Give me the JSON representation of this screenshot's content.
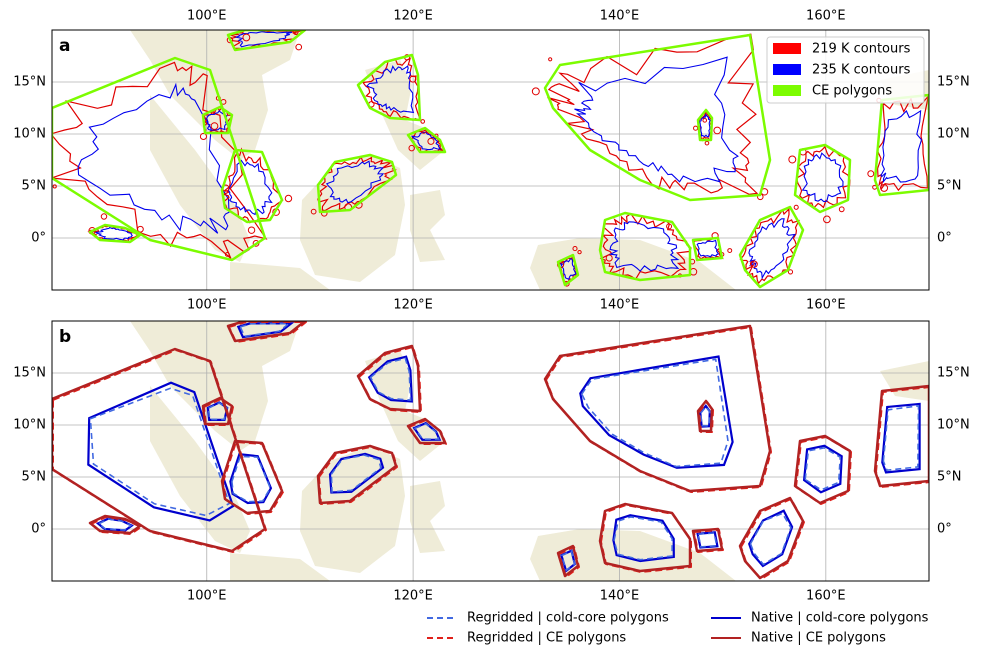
{
  "panels": [
    {
      "label": "a",
      "legend": [
        {
          "name": "219 K contours",
          "color": "#ff0000"
        },
        {
          "name": "235 K contours",
          "color": "#0000ff"
        },
        {
          "name": "CE polygons",
          "color": "#7cfc00"
        }
      ]
    },
    {
      "label": "b"
    }
  ],
  "map": {
    "xlim": [
      85,
      170
    ],
    "ylim": [
      -5,
      20
    ],
    "grid": true,
    "xticks": [
      {
        "value": 100,
        "label": "100°E"
      },
      {
        "value": 120,
        "label": "120°E"
      },
      {
        "value": 140,
        "label": "140°E"
      },
      {
        "value": 160,
        "label": "160°E"
      }
    ],
    "yticks": [
      {
        "value": 0,
        "label": "0°"
      },
      {
        "value": 5,
        "label": "5°N"
      },
      {
        "value": 10,
        "label": "10°N"
      },
      {
        "value": 15,
        "label": "15°N"
      }
    ]
  },
  "bottom_legend": [
    {
      "name": "Regridded | cold-core polygons",
      "color": "#4169e1",
      "style": "dashed"
    },
    {
      "name": "Regridded | CE polygons",
      "color": "#e0201a",
      "style": "dashed"
    },
    {
      "name": "Native | cold-core polygons",
      "color": "#0000cd",
      "style": "solid"
    },
    {
      "name": "Native | CE polygons",
      "color": "#b22222",
      "style": "solid"
    }
  ]
}
